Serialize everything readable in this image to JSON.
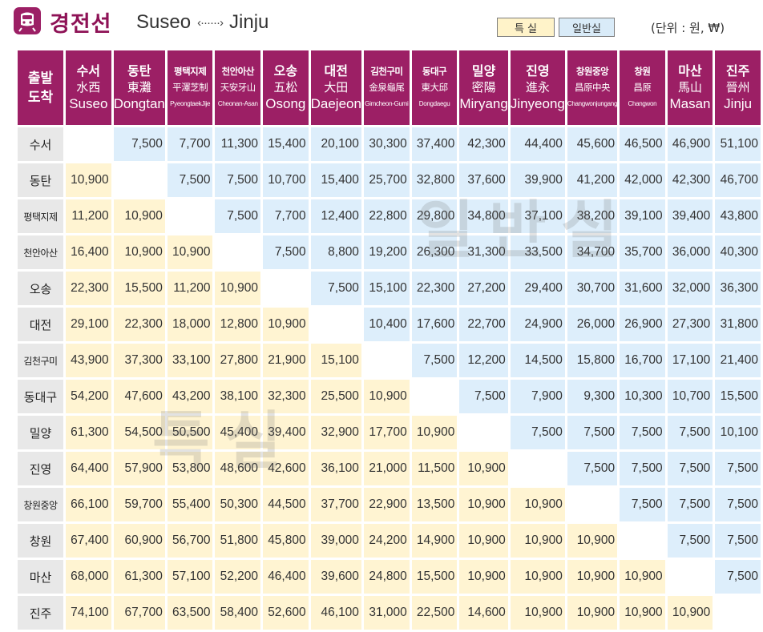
{
  "header": {
    "title": "경전선",
    "route_from": "Suseo",
    "route_arrow": "‹······›",
    "route_to": "Jinju",
    "legend_special": "특 실",
    "legend_general": "일반실",
    "unit": "(단위 : 원, ₩)"
  },
  "colors": {
    "header_bg": "#9c1f65",
    "special_cell": "#fff4d2",
    "general_cell": "#ddeefb",
    "row_header_bg": "#e8e8e8"
  },
  "watermarks": {
    "general": "일반실",
    "special": "특실"
  },
  "corner": {
    "line1": "출발",
    "line2": "도착"
  },
  "stations": [
    {
      "ko": "수서",
      "zh": "水西",
      "en": "Suseo"
    },
    {
      "ko": "동탄",
      "zh": "東灘",
      "en": "Dongtan"
    },
    {
      "ko": "평택지제",
      "zh": "平澤芝制",
      "en": "PyeongtaekJije"
    },
    {
      "ko": "천안아산",
      "zh": "天安牙山",
      "en": "Cheonan-Asan"
    },
    {
      "ko": "오송",
      "zh": "五松",
      "en": "Osong"
    },
    {
      "ko": "대전",
      "zh": "大田",
      "en": "Daejeon"
    },
    {
      "ko": "김천구미",
      "zh": "金泉龜尾",
      "en": "Gimcheon-Gumi"
    },
    {
      "ko": "동대구",
      "zh": "東大邱",
      "en": "Dongdaegu"
    },
    {
      "ko": "밀양",
      "zh": "密陽",
      "en": "Miryang"
    },
    {
      "ko": "진영",
      "zh": "進永",
      "en": "Jinyeong"
    },
    {
      "ko": "창원중앙",
      "zh": "昌原中央",
      "en": "Changwonjungang"
    },
    {
      "ko": "창원",
      "zh": "昌原",
      "en": "Changwon"
    },
    {
      "ko": "마산",
      "zh": "馬山",
      "en": "Masan"
    },
    {
      "ko": "진주",
      "zh": "晉州",
      "en": "Jinju"
    }
  ],
  "fares": [
    [
      "",
      "7,500",
      "7,700",
      "11,300",
      "15,400",
      "20,100",
      "30,300",
      "37,400",
      "42,300",
      "44,400",
      "45,600",
      "46,500",
      "46,900",
      "51,100"
    ],
    [
      "10,900",
      "",
      "7,500",
      "7,500",
      "10,700",
      "15,400",
      "25,700",
      "32,800",
      "37,600",
      "39,900",
      "41,200",
      "42,000",
      "42,300",
      "46,700"
    ],
    [
      "11,200",
      "10,900",
      "",
      "7,500",
      "7,700",
      "12,400",
      "22,800",
      "29,800",
      "34,800",
      "37,100",
      "38,200",
      "39,100",
      "39,400",
      "43,800"
    ],
    [
      "16,400",
      "10,900",
      "10,900",
      "",
      "7,500",
      "8,800",
      "19,200",
      "26,300",
      "31,300",
      "33,500",
      "34,700",
      "35,700",
      "36,000",
      "40,300"
    ],
    [
      "22,300",
      "15,500",
      "11,200",
      "10,900",
      "",
      "7,500",
      "15,100",
      "22,300",
      "27,200",
      "29,400",
      "30,700",
      "31,600",
      "32,000",
      "36,300"
    ],
    [
      "29,100",
      "22,300",
      "18,000",
      "12,800",
      "10,900",
      "",
      "10,400",
      "17,600",
      "22,700",
      "24,900",
      "26,000",
      "26,900",
      "27,300",
      "31,800"
    ],
    [
      "43,900",
      "37,300",
      "33,100",
      "27,800",
      "21,900",
      "15,100",
      "",
      "7,500",
      "12,200",
      "14,500",
      "15,800",
      "16,700",
      "17,100",
      "21,400"
    ],
    [
      "54,200",
      "47,600",
      "43,200",
      "38,100",
      "32,300",
      "25,500",
      "10,900",
      "",
      "7,500",
      "7,900",
      "9,300",
      "10,300",
      "10,700",
      "15,500"
    ],
    [
      "61,300",
      "54,500",
      "50,500",
      "45,400",
      "39,400",
      "32,900",
      "17,700",
      "10,900",
      "",
      "7,500",
      "7,500",
      "7,500",
      "7,500",
      "10,100"
    ],
    [
      "64,400",
      "57,900",
      "53,800",
      "48,600",
      "42,600",
      "36,100",
      "21,000",
      "11,500",
      "10,900",
      "",
      "7,500",
      "7,500",
      "7,500",
      "7,500"
    ],
    [
      "66,100",
      "59,700",
      "55,400",
      "50,300",
      "44,500",
      "37,700",
      "22,900",
      "13,500",
      "10,900",
      "10,900",
      "",
      "7,500",
      "7,500",
      "7,500"
    ],
    [
      "67,400",
      "60,900",
      "56,700",
      "51,800",
      "45,800",
      "39,000",
      "24,200",
      "14,900",
      "10,900",
      "10,900",
      "10,900",
      "",
      "7,500",
      "7,500"
    ],
    [
      "68,000",
      "61,300",
      "57,100",
      "52,200",
      "46,400",
      "39,600",
      "24,800",
      "15,500",
      "10,900",
      "10,900",
      "10,900",
      "10,900",
      "",
      "7,500"
    ],
    [
      "74,100",
      "67,700",
      "63,500",
      "58,400",
      "52,600",
      "46,100",
      "31,000",
      "22,500",
      "14,600",
      "10,900",
      "10,900",
      "10,900",
      "10,900",
      ""
    ]
  ]
}
